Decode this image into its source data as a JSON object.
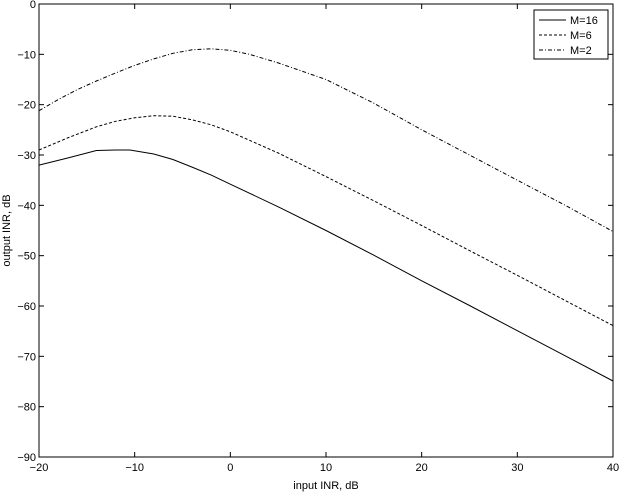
{
  "chart_data": {
    "type": "line",
    "title": "",
    "xlabel": "input INR, dB",
    "ylabel": "output INR, dB",
    "xlim": [
      -20,
      40
    ],
    "ylim": [
      -90,
      0
    ],
    "xticks": [
      -20,
      -10,
      0,
      10,
      20,
      30,
      40
    ],
    "yticks": [
      0,
      -10,
      -20,
      -30,
      -40,
      -50,
      -60,
      -70,
      -80,
      -90
    ],
    "xtick_labels": [
      "−20",
      "−10",
      "0",
      "10",
      "20",
      "30",
      "40"
    ],
    "ytick_labels": [
      "0",
      "−10",
      "−20",
      "−30",
      "−40",
      "−50",
      "−60",
      "−70",
      "−80",
      "−90"
    ],
    "grid": false,
    "legend_position": "top-right",
    "series": [
      {
        "name": "M=16",
        "line_style": "solid",
        "x": [
          -20,
          -17,
          -14,
          -12,
          -10.5,
          -8,
          -6,
          -4,
          -2,
          0,
          5,
          10,
          15,
          20,
          25,
          30,
          35,
          40
        ],
        "y": [
          -32,
          -30.6,
          -29.1,
          -29.0,
          -29.0,
          -29.8,
          -30.9,
          -32.4,
          -34.0,
          -35.8,
          -40.3,
          -45.0,
          -49.9,
          -55.0,
          -59.9,
          -64.9,
          -69.9,
          -74.9
        ]
      },
      {
        "name": "M=6",
        "line_style": "dashed",
        "x": [
          -20,
          -17,
          -14,
          -12,
          -10,
          -8,
          -6,
          -4,
          -2,
          0,
          5,
          10,
          15,
          20,
          25,
          30,
          35,
          40
        ],
        "y": [
          -29.0,
          -26.6,
          -24.4,
          -23.3,
          -22.6,
          -22.2,
          -22.3,
          -23.0,
          -24.0,
          -25.4,
          -29.6,
          -34.3,
          -39.1,
          -44.0,
          -49.0,
          -53.9,
          -58.9,
          -63.9
        ]
      },
      {
        "name": "M=2",
        "line_style": "dashdot",
        "x": [
          -20,
          -18,
          -16,
          -14,
          -12,
          -10,
          -8,
          -6,
          -4,
          -2,
          0,
          2,
          5,
          10,
          15,
          20,
          25,
          30,
          35,
          40
        ],
        "y": [
          -21.2,
          -19.0,
          -17.0,
          -15.3,
          -13.7,
          -12.2,
          -10.9,
          -9.8,
          -9.1,
          -8.9,
          -9.2,
          -10.0,
          -11.7,
          -15.0,
          -19.7,
          -25.0,
          -30.0,
          -35.0,
          -40.0,
          -45.2
        ]
      }
    ]
  }
}
